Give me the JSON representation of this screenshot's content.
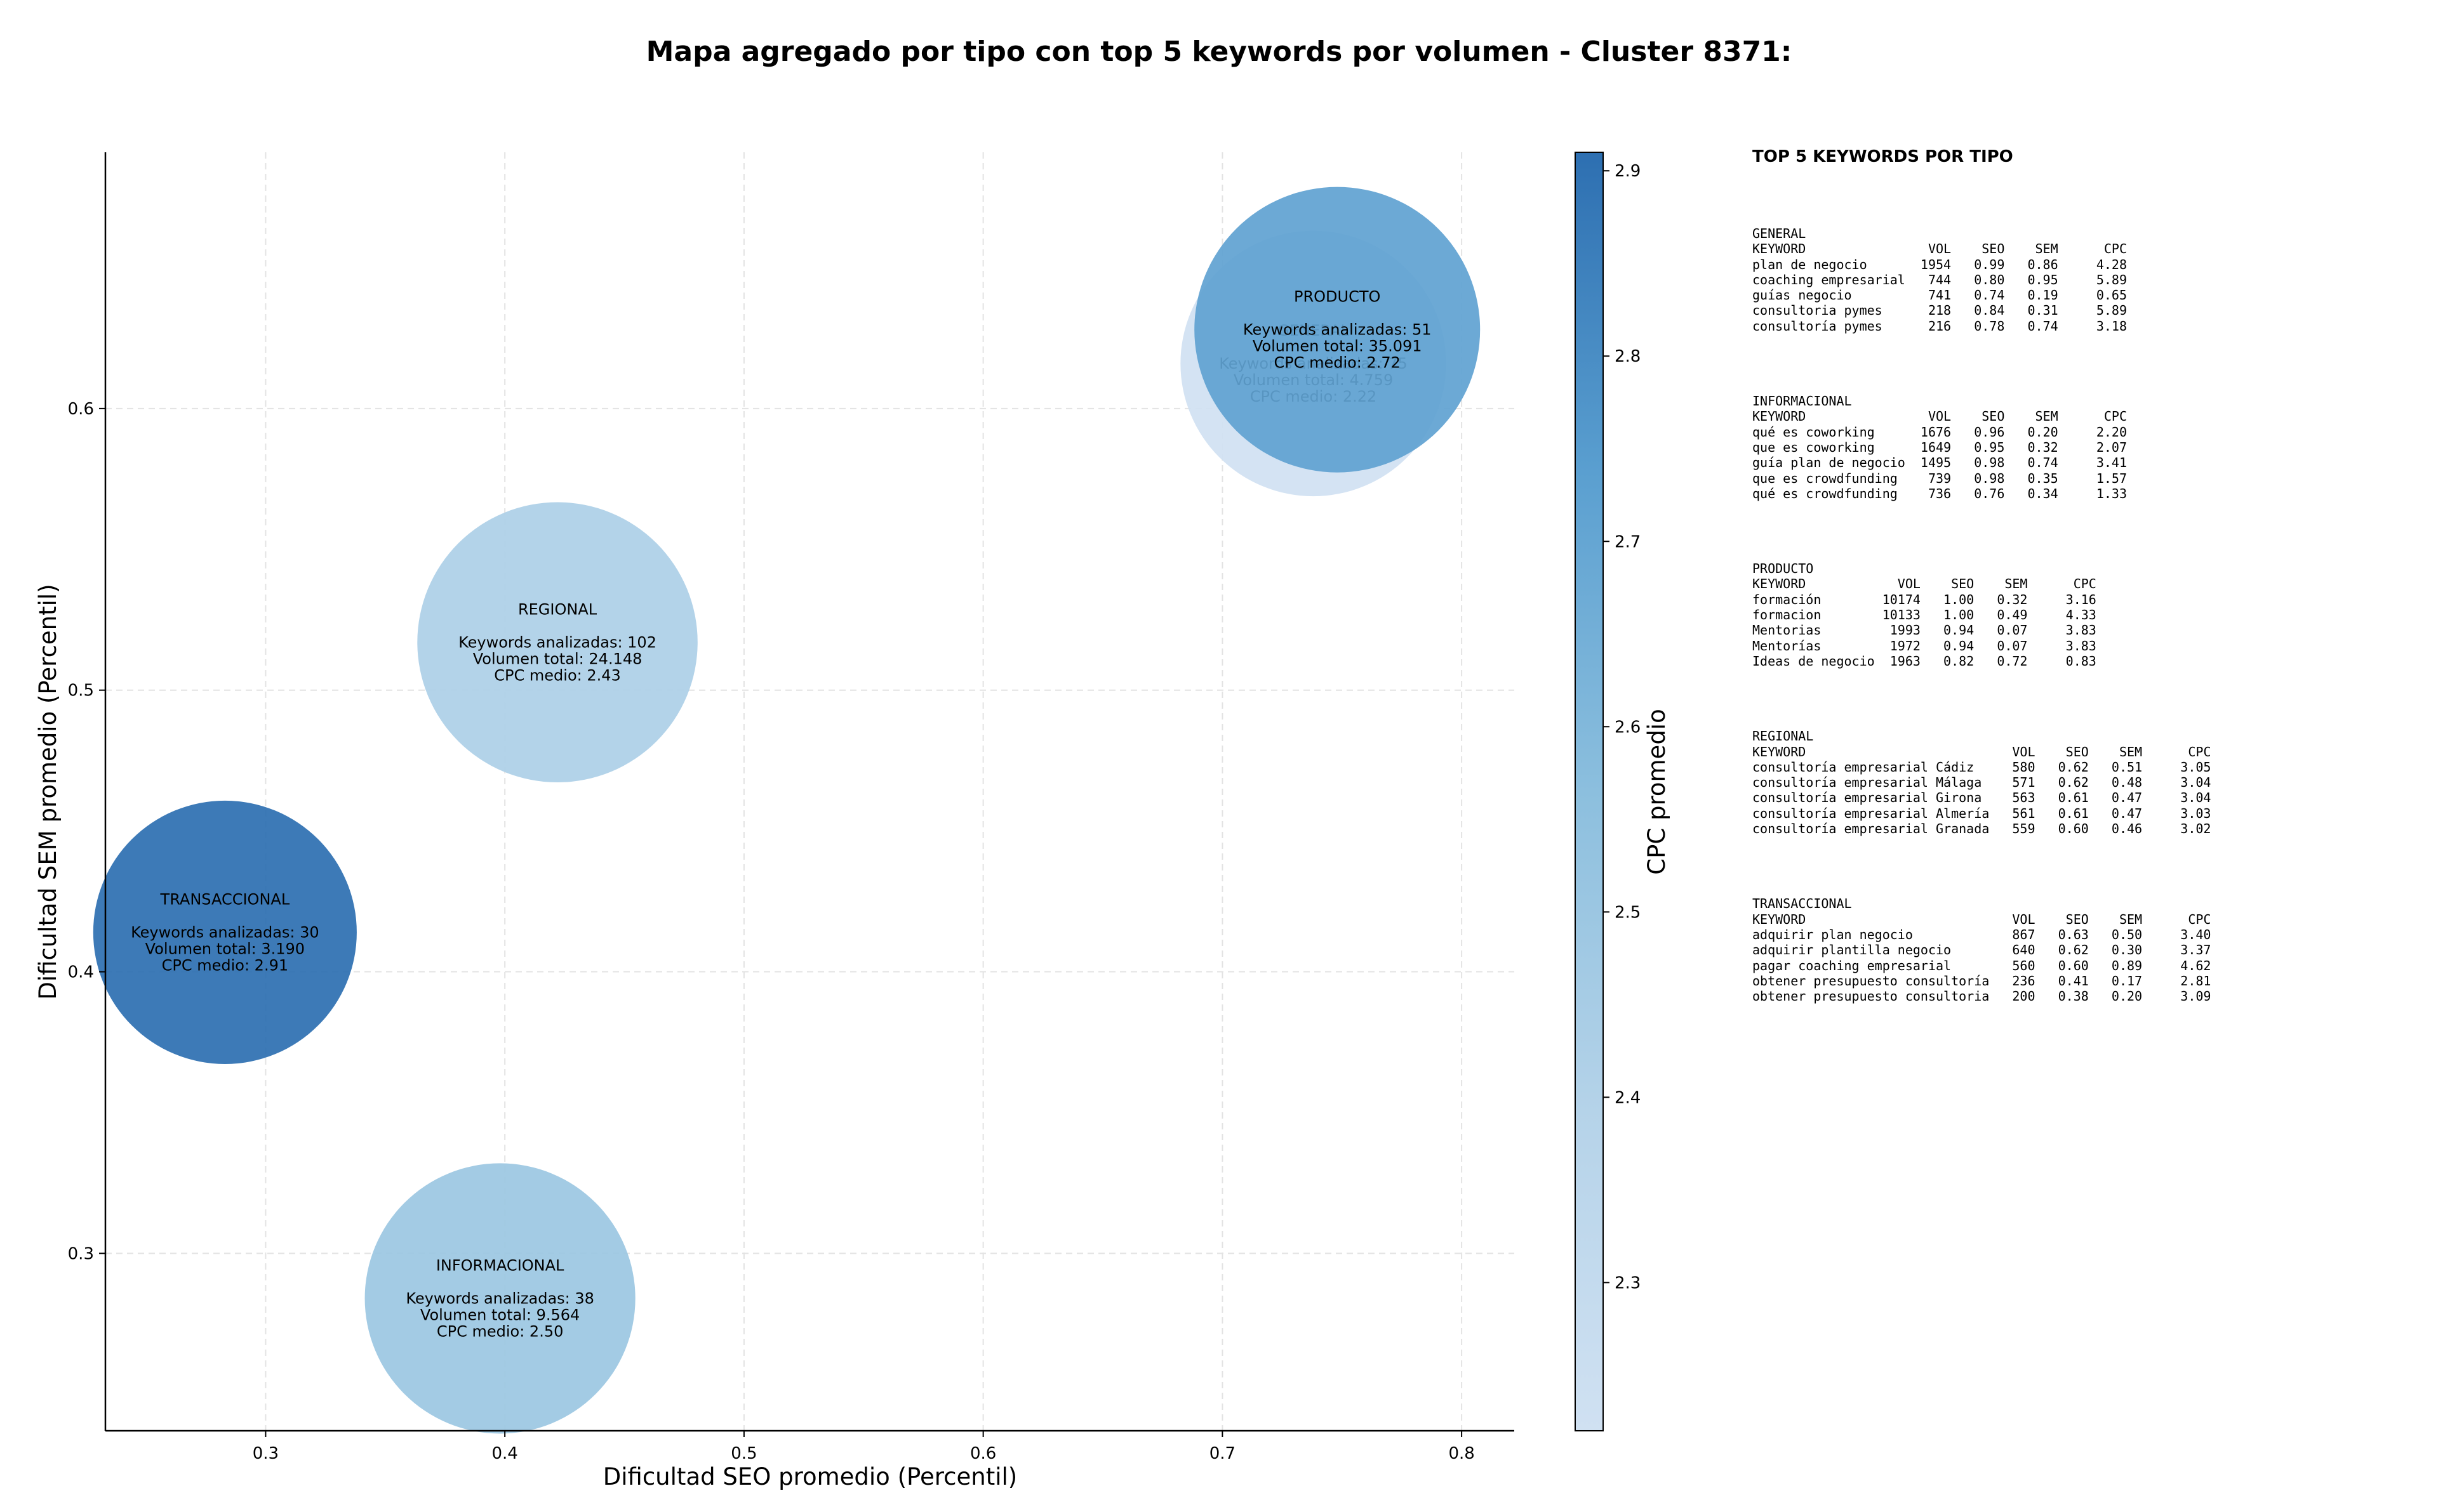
{
  "chart_title": "Mapa agregado por tipo con top 5 keywords por volumen - Cluster 8371:",
  "chart_data": {
    "type": "scatter",
    "title": "Mapa agregado por tipo con top 5 keywords por volumen - Cluster 8371:",
    "xlabel": "Dificultad SEO promedio (Percentil)",
    "ylabel": "Dificultad SEM promedio (Percentil)",
    "xlim": [
      0.233,
      0.822
    ],
    "ylim": [
      0.237,
      0.691
    ],
    "xticks": [
      0.3,
      0.4,
      0.5,
      0.6,
      0.7,
      0.8
    ],
    "yticks": [
      0.3,
      0.4,
      0.5,
      0.6
    ],
    "grid": true,
    "colorbar": {
      "label": "CPC promedio",
      "min": 2.22,
      "max": 2.91,
      "ticks": [
        2.3,
        2.4,
        2.5,
        2.6,
        2.7,
        2.8,
        2.9
      ],
      "colormap": "Blues",
      "low_color": "#d0e1f2",
      "high_color": "#2d6fb1"
    },
    "points": [
      {
        "label": "GENERAL",
        "x": 0.738,
        "y": 0.616,
        "keywords": 75,
        "volume": 4759,
        "cpc": 2.22,
        "lines": [
          "GENERAL",
          "",
          "Keywords analizadas: 75",
          "Volumen total: 4.759",
          "CPC medio: 2.22"
        ]
      },
      {
        "label": "PRODUCTO",
        "x": 0.748,
        "y": 0.628,
        "keywords": 51,
        "volume": 35091,
        "cpc": 2.72,
        "lines": [
          "PRODUCTO",
          "",
          "Keywords analizadas: 51",
          "Volumen total: 35.091",
          "CPC medio: 2.72"
        ]
      },
      {
        "label": "REGIONAL",
        "x": 0.422,
        "y": 0.517,
        "keywords": 102,
        "volume": 24148,
        "cpc": 2.43,
        "lines": [
          "REGIONAL",
          "",
          "Keywords analizadas: 102",
          "Volumen total: 24.148",
          "CPC medio: 2.43"
        ]
      },
      {
        "label": "TRANSACCIONAL",
        "x": 0.283,
        "y": 0.414,
        "keywords": 30,
        "volume": 3190,
        "cpc": 2.91,
        "lines": [
          "TRANSACCIONAL",
          "",
          "Keywords analizadas: 30",
          "Volumen total: 3.190",
          "CPC medio: 2.91"
        ]
      },
      {
        "label": "INFORMACIONAL",
        "x": 0.398,
        "y": 0.284,
        "keywords": 38,
        "volume": 9564,
        "cpc": 2.5,
        "lines": [
          "INFORMACIONAL",
          "",
          "Keywords analizadas: 38",
          "Volumen total: 9.564",
          "CPC medio: 2.50"
        ]
      }
    ]
  },
  "side_panel": {
    "title": "TOP 5 KEYWORDS POR TIPO",
    "sections": [
      {
        "name": "GENERAL",
        "lines": [
          "GENERAL",
          "KEYWORD                VOL    SEO    SEM      CPC",
          "plan de negocio       1954   0.99   0.86     4.28",
          "coaching empresarial   744   0.80   0.95     5.89",
          "guías negocio          741   0.74   0.19     0.65",
          "consultoria pymes      218   0.84   0.31     5.89",
          "consultoría pymes      216   0.78   0.74     3.18"
        ]
      },
      {
        "name": "INFORMACIONAL",
        "lines": [
          "INFORMACIONAL",
          "KEYWORD                VOL    SEO    SEM      CPC",
          "qué es coworking      1676   0.96   0.20     2.20",
          "que es coworking      1649   0.95   0.32     2.07",
          "guía plan de negocio  1495   0.98   0.74     3.41",
          "que es crowdfunding    739   0.98   0.35     1.57",
          "qué es crowdfunding    736   0.76   0.34     1.33"
        ]
      },
      {
        "name": "PRODUCTO",
        "lines": [
          "PRODUCTO",
          "KEYWORD            VOL    SEO    SEM      CPC",
          "formación        10174   1.00   0.32     3.16",
          "formacion        10133   1.00   0.49     4.33",
          "Mentorias         1993   0.94   0.07     3.83",
          "Mentorías         1972   0.94   0.07     3.83",
          "Ideas de negocio  1963   0.82   0.72     0.83"
        ]
      },
      {
        "name": "REGIONAL",
        "lines": [
          "REGIONAL",
          "KEYWORD                           VOL    SEO    SEM      CPC",
          "consultoría empresarial Cádiz     580   0.62   0.51     3.05",
          "consultoría empresarial Málaga    571   0.62   0.48     3.04",
          "consultoría empresarial Girona    563   0.61   0.47     3.04",
          "consultoría empresarial Almería   561   0.61   0.47     3.03",
          "consultoría empresarial Granada   559   0.60   0.46     3.02"
        ]
      },
      {
        "name": "TRANSACCIONAL",
        "lines": [
          "TRANSACCIONAL",
          "KEYWORD                           VOL    SEO    SEM      CPC",
          "adquirir plan negocio             867   0.63   0.50     3.40",
          "adquirir plantilla negocio        640   0.62   0.30     3.37",
          "pagar coaching empresarial        560   0.60   0.89     4.62",
          "obtener presupuesto consultoría   236   0.41   0.17     2.81",
          "obtener presupuesto consultoria   200   0.38   0.20     3.09"
        ]
      }
    ]
  }
}
